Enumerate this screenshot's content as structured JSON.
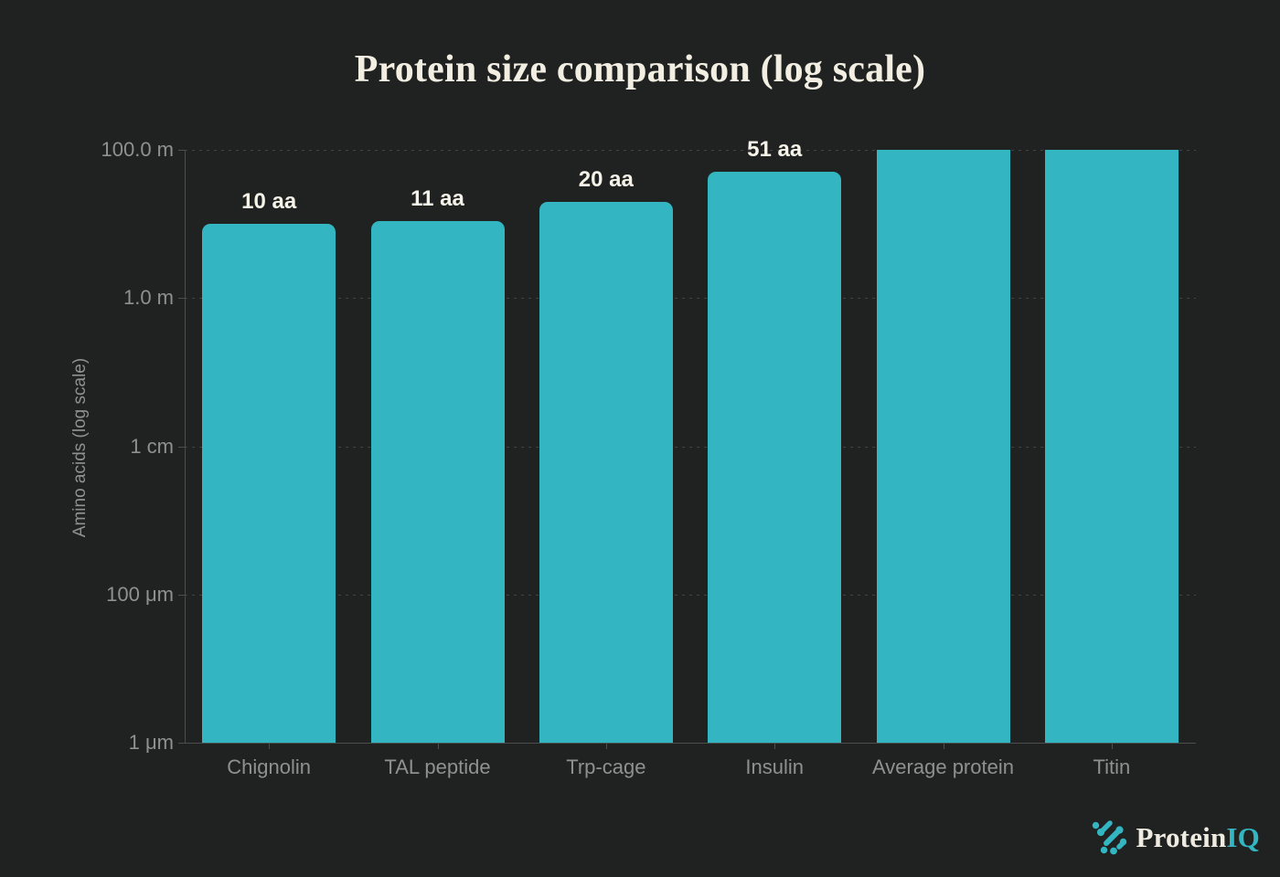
{
  "colors": {
    "background": "#202222",
    "bar": "#33b6c2",
    "title": "#f2eee2",
    "value_text": "#f5f2e8",
    "axis_text": "#8f9191",
    "grid": "#414444",
    "axis_line": "#4c4e4e",
    "cream": "#efebe0"
  },
  "branding": {
    "name_primary": "Protein",
    "name_accent": "IQ",
    "logo_icon": "molecule-dots-icon"
  },
  "chart_data": {
    "type": "bar",
    "title": "Protein size comparison (log scale)",
    "xlabel": "",
    "ylabel": "Amino acids (log scale)",
    "y_scale": "log",
    "ylim": [
      1e-06,
      100
    ],
    "grid": "horizontal dashed",
    "legend": "none",
    "categories": [
      "Chignolin",
      "TAL peptide",
      "Trp-cage",
      "Insulin",
      "Average protein",
      "Titin"
    ],
    "values": [
      10,
      11,
      20,
      51,
      100,
      100
    ],
    "bar_labels": [
      "10 aa",
      "11 aa",
      "20 aa",
      "51 aa",
      "",
      ""
    ],
    "clipped_at_top": [
      false,
      false,
      false,
      false,
      true,
      true
    ],
    "y_ticks": [
      {
        "value": 100,
        "label": "100.0 m"
      },
      {
        "value": 1,
        "label": "1.0 m"
      },
      {
        "value": 0.01,
        "label": "1 cm"
      },
      {
        "value": 0.0001,
        "label": "100 μm"
      },
      {
        "value": 1e-06,
        "label": "1 μm"
      }
    ]
  }
}
